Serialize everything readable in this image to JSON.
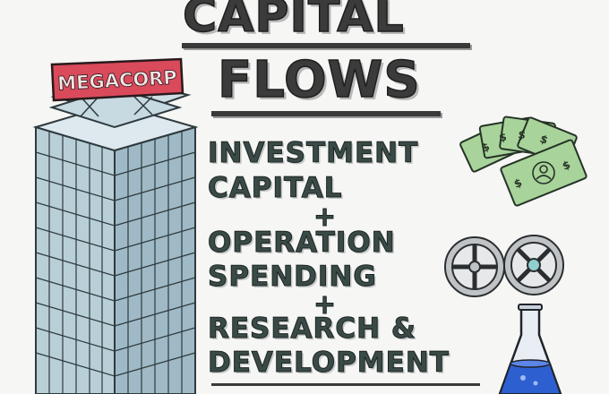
{
  "title": {
    "line1": "CAPITAL",
    "line2": "FLOWS"
  },
  "building": {
    "sign": "MEGACORP"
  },
  "formula": {
    "term1_line1": "INVESTMENT",
    "term1_line2": "CAPITAL",
    "plus1": "+",
    "term2_line1": "OPERATION",
    "term2_line2": "SPENDING",
    "plus2": "+",
    "term3_line1": "RESEARCH &",
    "term3_line2": "DEVELOPMENT"
  },
  "icons": {
    "money": "money-stack-icon",
    "gears": "gears-icon",
    "flask": "flask-icon"
  },
  "colors": {
    "title": "#3b3b3b",
    "formula": "#3a4a47",
    "building_glass": "#b9cfd8",
    "sign": "#d94a5a",
    "money": "#a8d39a",
    "flask_liquid": "#2d5fd0"
  }
}
